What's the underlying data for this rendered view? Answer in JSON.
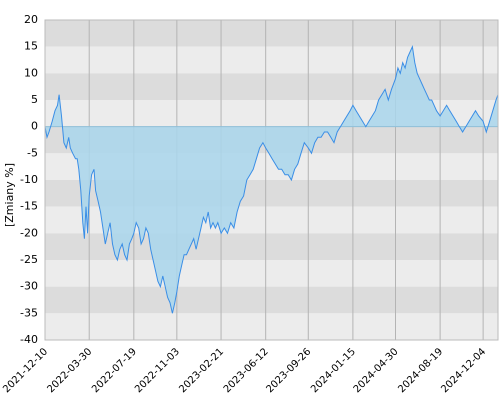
{
  "chart_data": {
    "type": "area",
    "ylabel": "[Zmiany %]",
    "ylim": [
      -40,
      20
    ],
    "y_ticks": [
      20,
      15,
      10,
      5,
      0,
      -5,
      -10,
      -15,
      -20,
      -25,
      -30,
      -35,
      -40
    ],
    "x_tick_labels": [
      "2021-12-10",
      "2022-03-30",
      "2022-07-19",
      "2022-11-03",
      "2023-02-21",
      "2023-06-12",
      "2023-09-26",
      "2024-01-15",
      "2024-04-30",
      "2024-08-19",
      "2024-12-04"
    ],
    "x_ticks": [
      "2021-12-10",
      "2022-03-30",
      "2022-07-19",
      "2022-11-03",
      "2023-02-21",
      "2023-06-12",
      "2023-09-26",
      "2024-01-15",
      "2024-04-30",
      "2024-08-19",
      "2024-12-04"
    ],
    "x_range": [
      "2021-12-10",
      "2025-01-10"
    ],
    "grid": true,
    "colors": {
      "line": "#3a8ee6",
      "fill": "#a9d6ec",
      "band_dark": "#dcdcdc",
      "band_light": "#ececec",
      "vgrid": "#b4b4b4"
    },
    "series": [
      {
        "x": [
          "2021-12-10",
          "2021-12-15",
          "2021-12-20",
          "2021-12-28",
          "2022-01-04",
          "2022-01-10",
          "2022-01-14",
          "2022-01-20",
          "2022-01-26",
          "2022-02-01",
          "2022-02-07",
          "2022-02-11",
          "2022-02-17",
          "2022-02-24",
          "2022-02-28",
          "2022-03-04",
          "2022-03-09",
          "2022-03-14",
          "2022-03-18",
          "2022-03-22",
          "2022-03-26",
          "2022-03-30",
          "2022-04-05",
          "2022-04-11",
          "2022-04-15",
          "2022-04-21",
          "2022-04-27",
          "2022-05-03",
          "2022-05-09",
          "2022-05-15",
          "2022-05-21",
          "2022-05-27",
          "2022-06-02",
          "2022-06-08",
          "2022-06-14",
          "2022-06-20",
          "2022-06-26",
          "2022-07-02",
          "2022-07-08",
          "2022-07-14",
          "2022-07-19",
          "2022-07-25",
          "2022-07-31",
          "2022-08-06",
          "2022-08-12",
          "2022-08-18",
          "2022-08-24",
          "2022-08-30",
          "2022-09-05",
          "2022-09-11",
          "2022-09-17",
          "2022-09-23",
          "2022-09-29",
          "2022-10-05",
          "2022-10-11",
          "2022-10-17",
          "2022-10-23",
          "2022-10-29",
          "2022-11-03",
          "2022-11-09",
          "2022-11-15",
          "2022-11-21",
          "2022-11-27",
          "2022-12-03",
          "2022-12-09",
          "2022-12-15",
          "2022-12-21",
          "2022-12-27",
          "2023-01-02",
          "2023-01-08",
          "2023-01-14",
          "2023-01-20",
          "2023-01-26",
          "2023-02-01",
          "2023-02-07",
          "2023-02-13",
          "2023-02-21",
          "2023-03-01",
          "2023-03-09",
          "2023-03-17",
          "2023-03-25",
          "2023-04-02",
          "2023-04-10",
          "2023-04-18",
          "2023-04-26",
          "2023-05-04",
          "2023-05-12",
          "2023-05-20",
          "2023-05-28",
          "2023-06-05",
          "2023-06-12",
          "2023-06-20",
          "2023-06-28",
          "2023-07-06",
          "2023-07-14",
          "2023-07-22",
          "2023-07-30",
          "2023-08-07",
          "2023-08-15",
          "2023-08-23",
          "2023-08-31",
          "2023-09-08",
          "2023-09-16",
          "2023-09-26",
          "2023-10-04",
          "2023-10-12",
          "2023-10-20",
          "2023-10-28",
          "2023-11-05",
          "2023-11-13",
          "2023-11-21",
          "2023-11-29",
          "2023-12-07",
          "2023-12-15",
          "2023-12-23",
          "2023-12-31",
          "2024-01-08",
          "2024-01-15",
          "2024-01-23",
          "2024-01-31",
          "2024-02-08",
          "2024-02-16",
          "2024-02-24",
          "2024-03-03",
          "2024-03-11",
          "2024-03-19",
          "2024-03-27",
          "2024-04-04",
          "2024-04-12",
          "2024-04-20",
          "2024-04-30",
          "2024-05-06",
          "2024-05-12",
          "2024-05-18",
          "2024-05-24",
          "2024-05-30",
          "2024-06-05",
          "2024-06-11",
          "2024-06-17",
          "2024-06-23",
          "2024-06-29",
          "2024-07-05",
          "2024-07-11",
          "2024-07-17",
          "2024-07-23",
          "2024-07-29",
          "2024-08-04",
          "2024-08-10",
          "2024-08-19",
          "2024-08-27",
          "2024-09-04",
          "2024-09-12",
          "2024-09-20",
          "2024-09-28",
          "2024-10-06",
          "2024-10-14",
          "2024-10-22",
          "2024-10-30",
          "2024-11-07",
          "2024-11-15",
          "2024-11-23",
          "2024-12-04",
          "2024-12-12",
          "2024-12-20",
          "2024-12-28",
          "2025-01-05",
          "2025-01-10"
        ],
        "values": [
          0,
          -2,
          -1,
          1,
          3,
          4,
          6,
          2,
          -3,
          -4,
          -2,
          -4,
          -5,
          -6,
          -6,
          -8,
          -12,
          -18,
          -21,
          -15,
          -20,
          -13,
          -9,
          -8,
          -12,
          -14,
          -16,
          -19,
          -22,
          -20,
          -18,
          -22,
          -24,
          -25,
          -23,
          -22,
          -24,
          -25,
          -22,
          -21,
          -20,
          -18,
          -19,
          -22,
          -21,
          -19,
          -20,
          -23,
          -25,
          -27,
          -29,
          -30,
          -28,
          -30,
          -32,
          -33,
          -35,
          -33,
          -31,
          -28,
          -26,
          -24,
          -24,
          -23,
          -22,
          -21,
          -23,
          -21,
          -19,
          -17,
          -18,
          -16,
          -19,
          -18,
          -19,
          -18,
          -20,
          -19,
          -20,
          -18,
          -19,
          -16,
          -14,
          -13,
          -10,
          -9,
          -8,
          -6,
          -4,
          -3,
          -4,
          -5,
          -6,
          -7,
          -8,
          -8,
          -9,
          -9,
          -10,
          -8,
          -7,
          -5,
          -3,
          -4,
          -5,
          -3,
          -2,
          -2,
          -1,
          -1,
          -2,
          -3,
          -1,
          0,
          1,
          2,
          3,
          4,
          3,
          2,
          1,
          0,
          1,
          2,
          3,
          5,
          6,
          7,
          5,
          7,
          9,
          11,
          10,
          12,
          11,
          13,
          14,
          15,
          12,
          10,
          9,
          8,
          7,
          6,
          5,
          5,
          4,
          3,
          2,
          3,
          4,
          3,
          2,
          1,
          0,
          -1,
          0,
          1,
          2,
          3,
          2,
          1,
          -1,
          1,
          3,
          5,
          6
        ]
      }
    ]
  }
}
